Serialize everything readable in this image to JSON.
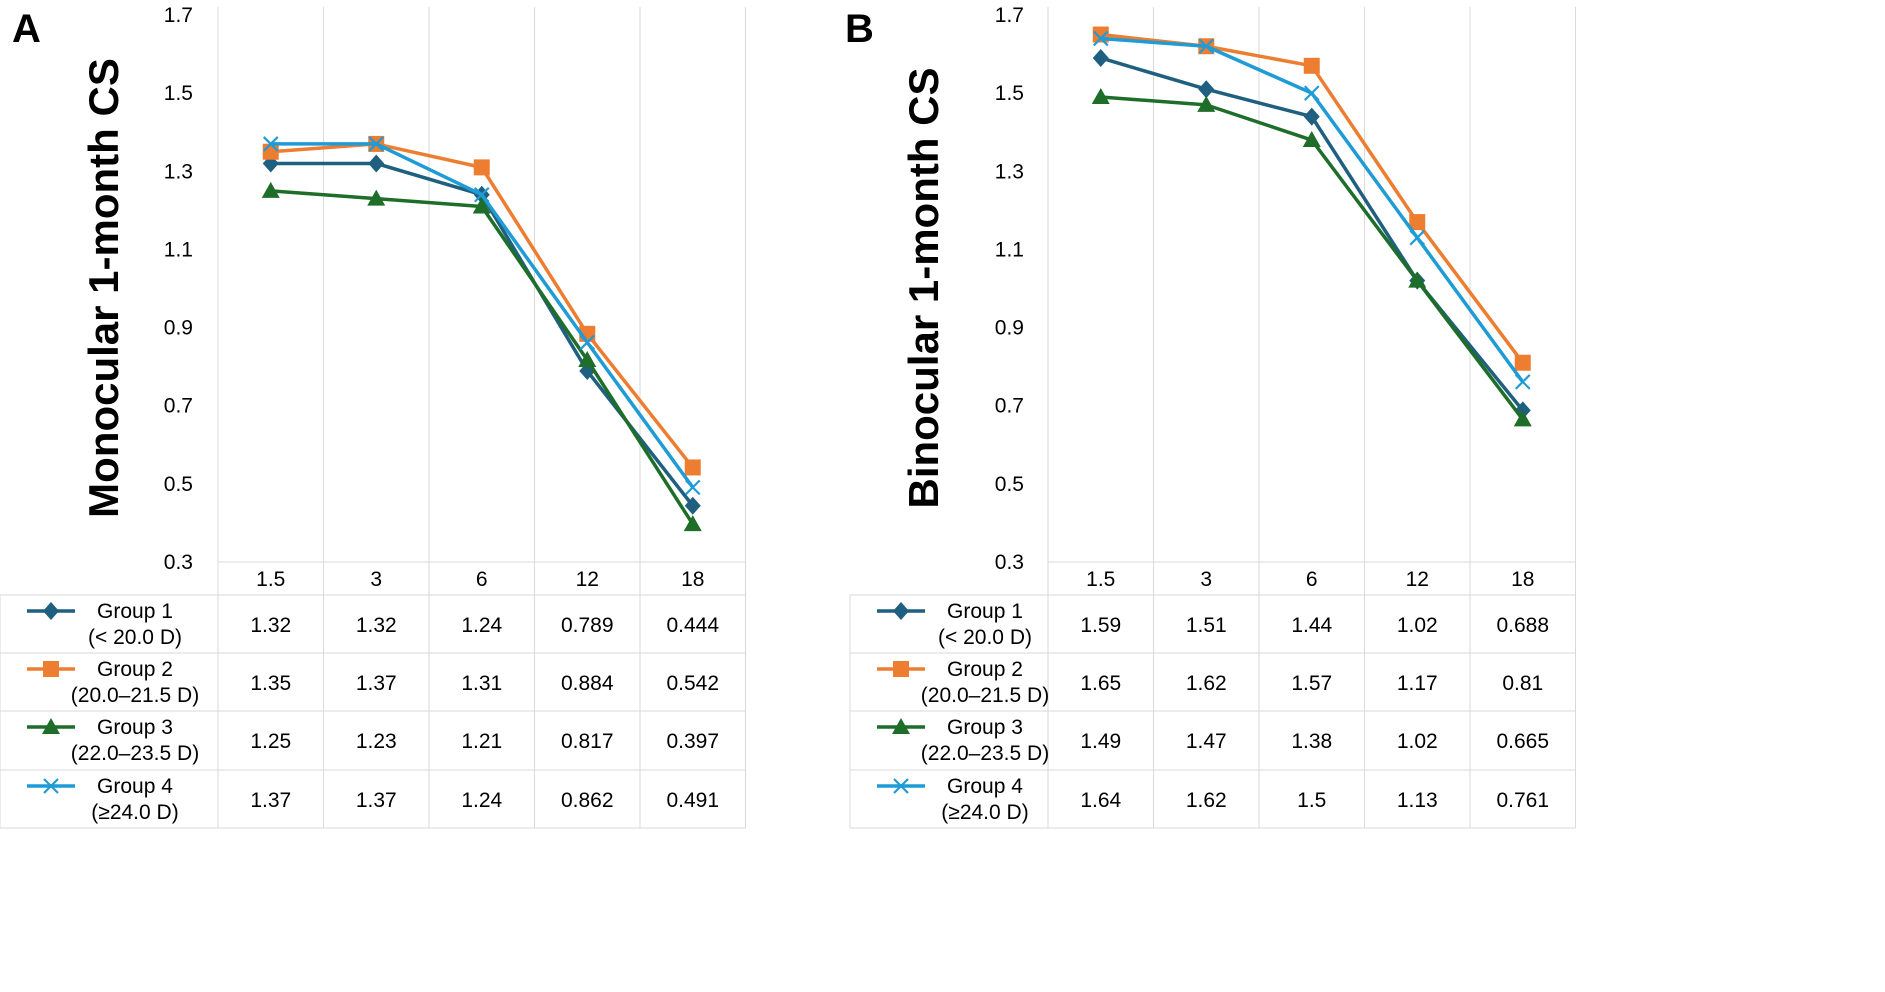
{
  "chart_data": [
    {
      "panel": "A",
      "type": "line",
      "ylabel": "Monocular 1-month CS",
      "ylim": [
        0.3,
        1.7
      ],
      "yticks": [
        0.3,
        0.5,
        0.7,
        0.9,
        1.1,
        1.3,
        1.5,
        1.7
      ],
      "categories": [
        "1.5",
        "3",
        "6",
        "12",
        "18"
      ],
      "grid": true,
      "legend_placement": "data-table",
      "series": [
        {
          "name_line1": "Group 1",
          "name_line2": "(< 20.0 D)",
          "color": "#1f5f7f",
          "marker": "diamond",
          "values": [
            1.32,
            1.32,
            1.24,
            0.789,
            0.444
          ],
          "labels": [
            "1.32",
            "1.32",
            "1.24",
            "0.789",
            "0.444"
          ]
        },
        {
          "name_line1": "Group 2",
          "name_line2": "(20.0–21.5 D)",
          "color": "#ed7d31",
          "marker": "square",
          "values": [
            1.35,
            1.37,
            1.31,
            0.884,
            0.542
          ],
          "labels": [
            "1.35",
            "1.37",
            "1.31",
            "0.884",
            "0.542"
          ]
        },
        {
          "name_line1": "Group 3",
          "name_line2": "(22.0–23.5 D)",
          "color": "#1e6e2a",
          "marker": "triangle",
          "values": [
            1.25,
            1.23,
            1.21,
            0.817,
            0.397
          ],
          "labels": [
            "1.25",
            "1.23",
            "1.21",
            "0.817",
            "0.397"
          ]
        },
        {
          "name_line1": "Group 4",
          "name_line2": "(≥24.0 D)",
          "color": "#1f9bd5",
          "marker": "x",
          "values": [
            1.37,
            1.37,
            1.24,
            0.862,
            0.491
          ],
          "labels": [
            "1.37",
            "1.37",
            "1.24",
            "0.862",
            "0.491"
          ]
        }
      ]
    },
    {
      "panel": "B",
      "type": "line",
      "ylabel": "Binocular 1-month CS",
      "ylim": [
        0.3,
        1.7
      ],
      "yticks": [
        0.3,
        0.5,
        0.7,
        0.9,
        1.1,
        1.3,
        1.5,
        1.7
      ],
      "categories": [
        "1.5",
        "3",
        "6",
        "12",
        "18"
      ],
      "grid": true,
      "legend_placement": "data-table",
      "series": [
        {
          "name_line1": "Group 1",
          "name_line2": "(< 20.0 D)",
          "color": "#1f5f7f",
          "marker": "diamond",
          "values": [
            1.59,
            1.51,
            1.44,
            1.02,
            0.688
          ],
          "labels": [
            "1.59",
            "1.51",
            "1.44",
            "1.02",
            "0.688"
          ]
        },
        {
          "name_line1": "Group 2",
          "name_line2": "(20.0–21.5 D)",
          "color": "#ed7d31",
          "marker": "square",
          "values": [
            1.65,
            1.62,
            1.57,
            1.17,
            0.81
          ],
          "labels": [
            "1.65",
            "1.62",
            "1.57",
            "1.17",
            "0.81"
          ]
        },
        {
          "name_line1": "Group 3",
          "name_line2": "(22.0–23.5 D)",
          "color": "#1e6e2a",
          "marker": "triangle",
          "values": [
            1.49,
            1.47,
            1.38,
            1.02,
            0.665
          ],
          "labels": [
            "1.49",
            "1.47",
            "1.38",
            "1.02",
            "0.665"
          ]
        },
        {
          "name_line1": "Group 4",
          "name_line2": "(≥24.0 D)",
          "color": "#1f9bd5",
          "marker": "x",
          "values": [
            1.64,
            1.62,
            1.5,
            1.13,
            0.761
          ],
          "labels": [
            "1.64",
            "1.62",
            "1.5",
            "1.13",
            "0.761"
          ]
        }
      ]
    }
  ]
}
